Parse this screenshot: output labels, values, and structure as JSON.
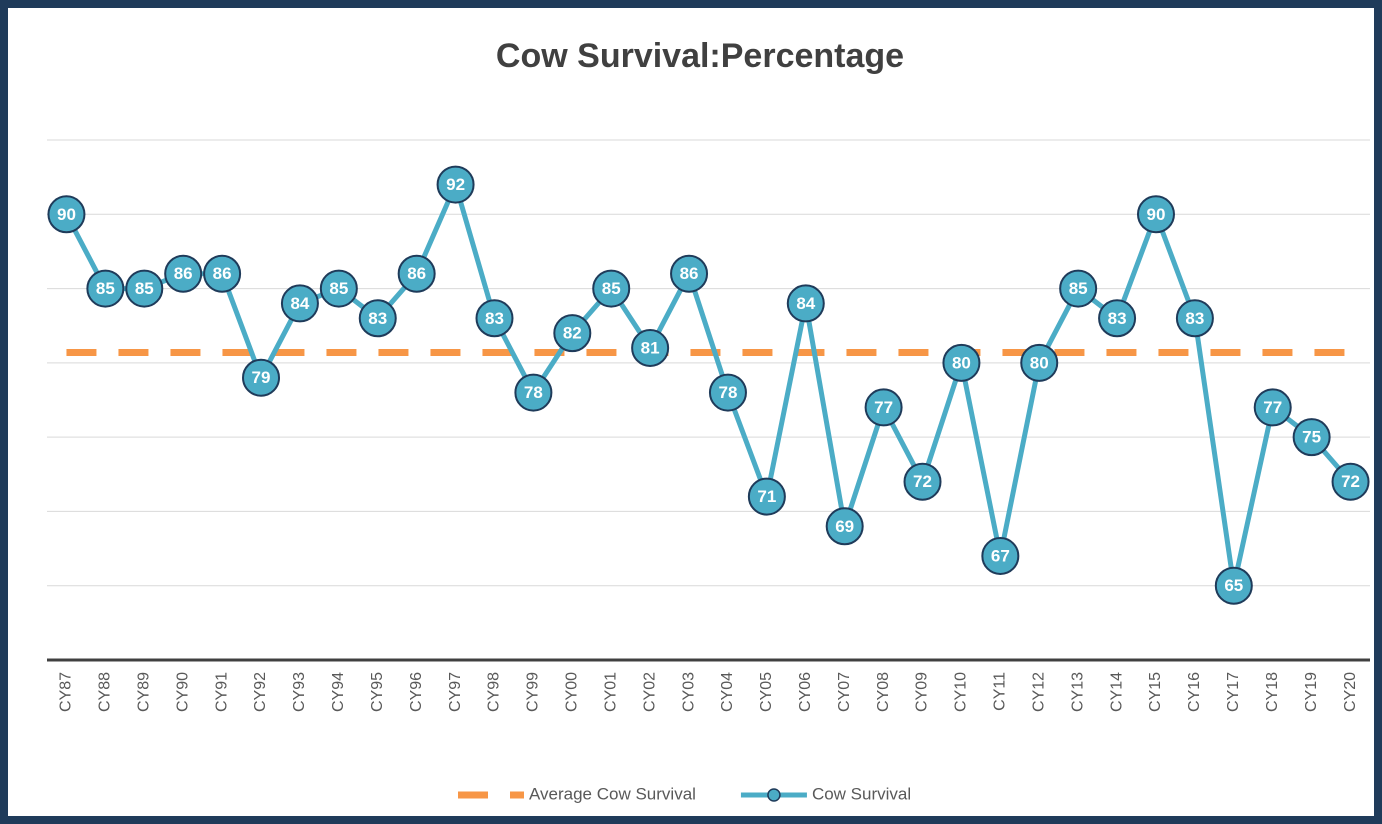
{
  "chart_data": {
    "type": "line",
    "title": "Cow Survival:Percentage",
    "categories": [
      "CY87",
      "CY88",
      "CY89",
      "CY90",
      "CY91",
      "CY92",
      "CY93",
      "CY94",
      "CY95",
      "CY96",
      "CY97",
      "CY98",
      "CY99",
      "CY00",
      "CY01",
      "CY02",
      "CY03",
      "CY04",
      "CY05",
      "CY06",
      "CY07",
      "CY08",
      "CY09",
      "CY10",
      "CY11",
      "CY12",
      "CY13",
      "CY14",
      "CY15",
      "CY16",
      "CY17",
      "CY18",
      "CY19",
      "CY20"
    ],
    "series": [
      {
        "name": "Average Cow Survival",
        "color": "#f79646",
        "dashed": true,
        "values": [
          80.7,
          80.7,
          80.7,
          80.7,
          80.7,
          80.7,
          80.7,
          80.7,
          80.7,
          80.7,
          80.7,
          80.7,
          80.7,
          80.7,
          80.7,
          80.7,
          80.7,
          80.7,
          80.7,
          80.7,
          80.7,
          80.7,
          80.7,
          80.7,
          80.7,
          80.7,
          80.7,
          80.7,
          80.7,
          80.7,
          80.7,
          80.7,
          80.7,
          80.7
        ]
      },
      {
        "name": "Cow Survival",
        "color": "#4bacc6",
        "markers": true,
        "data_labels": true,
        "values": [
          90,
          85,
          85,
          86,
          86,
          79,
          84,
          85,
          83,
          86,
          92,
          83,
          78,
          82,
          85,
          81,
          86,
          78,
          71,
          84,
          69,
          77,
          72,
          80,
          67,
          80,
          85,
          83,
          90,
          83,
          65,
          77,
          75,
          72
        ]
      }
    ],
    "ylim": [
      60,
      95
    ],
    "yticks": [
      60,
      65,
      70,
      75,
      80,
      85,
      90,
      95
    ],
    "grid": true,
    "legend": "bottom"
  }
}
